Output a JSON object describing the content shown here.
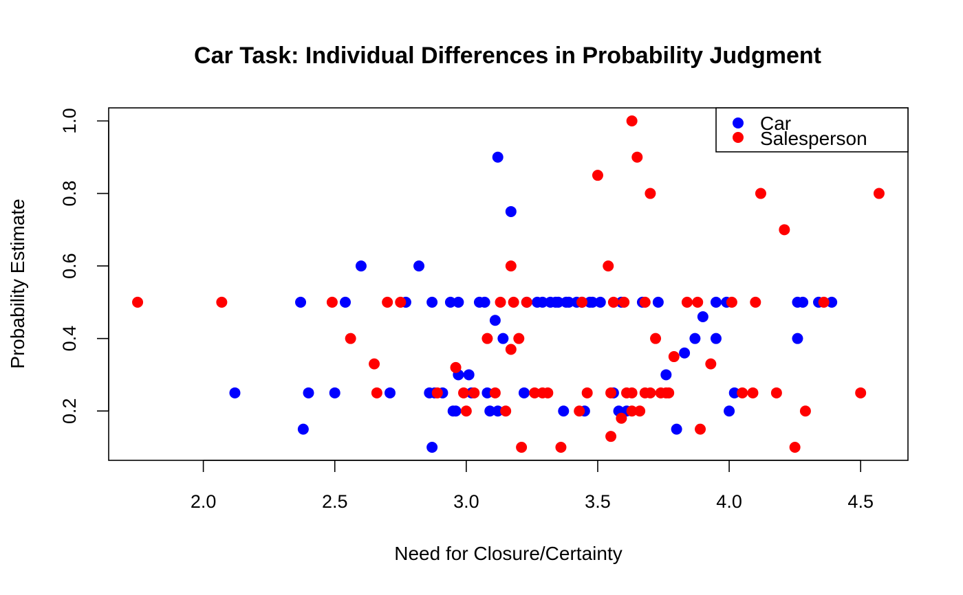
{
  "chart_data": {
    "type": "scatter",
    "title": "Car Task: Individual Differences in Probability Judgment",
    "xlabel": "Need for Closure/Certainty",
    "ylabel": "Probability Estimate",
    "xlim": [
      1.64,
      4.68
    ],
    "ylim": [
      0.064,
      1.036
    ],
    "x_ticks": [
      2.0,
      2.5,
      3.0,
      3.5,
      4.0,
      4.5
    ],
    "x_tick_labels": [
      "2.0",
      "2.5",
      "3.0",
      "3.5",
      "4.0",
      "4.5"
    ],
    "y_ticks": [
      0.2,
      0.4,
      0.6,
      0.8,
      1.0
    ],
    "y_tick_labels": [
      "0.2",
      "0.4",
      "0.6",
      "0.8",
      "1.0"
    ],
    "grid": false,
    "legend_position": "top-right",
    "series": [
      {
        "name": "Car",
        "color": "#0000ff",
        "points": [
          [
            2.12,
            0.25
          ],
          [
            2.37,
            0.5
          ],
          [
            2.38,
            0.15
          ],
          [
            2.4,
            0.25
          ],
          [
            2.5,
            0.25
          ],
          [
            2.54,
            0.5
          ],
          [
            2.6,
            0.6
          ],
          [
            2.71,
            0.25
          ],
          [
            2.77,
            0.5
          ],
          [
            2.82,
            0.6
          ],
          [
            2.86,
            0.25
          ],
          [
            2.87,
            0.5
          ],
          [
            2.87,
            0.1
          ],
          [
            2.88,
            0.25
          ],
          [
            2.91,
            0.25
          ],
          [
            2.94,
            0.5
          ],
          [
            2.95,
            0.2
          ],
          [
            2.96,
            0.2
          ],
          [
            2.97,
            0.3
          ],
          [
            2.97,
            0.5
          ],
          [
            3.01,
            0.3
          ],
          [
            3.02,
            0.25
          ],
          [
            3.05,
            0.5
          ],
          [
            3.07,
            0.5
          ],
          [
            3.08,
            0.25
          ],
          [
            3.09,
            0.2
          ],
          [
            3.11,
            0.45
          ],
          [
            3.12,
            0.9
          ],
          [
            3.12,
            0.2
          ],
          [
            3.14,
            0.4
          ],
          [
            3.17,
            0.75
          ],
          [
            3.22,
            0.25
          ],
          [
            3.23,
            0.5
          ],
          [
            3.27,
            0.5
          ],
          [
            3.29,
            0.5
          ],
          [
            3.32,
            0.5
          ],
          [
            3.34,
            0.5
          ],
          [
            3.35,
            0.5
          ],
          [
            3.37,
            0.2
          ],
          [
            3.38,
            0.5
          ],
          [
            3.39,
            0.5
          ],
          [
            3.42,
            0.5
          ],
          [
            3.44,
            0.5
          ],
          [
            3.45,
            0.2
          ],
          [
            3.47,
            0.5
          ],
          [
            3.48,
            0.5
          ],
          [
            3.51,
            0.5
          ],
          [
            3.56,
            0.25
          ],
          [
            3.58,
            0.2
          ],
          [
            3.59,
            0.5
          ],
          [
            3.61,
            0.2
          ],
          [
            3.67,
            0.5
          ],
          [
            3.73,
            0.5
          ],
          [
            3.76,
            0.3
          ],
          [
            3.8,
            0.15
          ],
          [
            3.83,
            0.36
          ],
          [
            3.87,
            0.4
          ],
          [
            3.9,
            0.46
          ],
          [
            3.95,
            0.4
          ],
          [
            3.95,
            0.5
          ],
          [
            3.99,
            0.5
          ],
          [
            4.0,
            0.2
          ],
          [
            4.02,
            0.25
          ],
          [
            4.26,
            0.4
          ],
          [
            4.26,
            0.5
          ],
          [
            4.28,
            0.5
          ],
          [
            4.34,
            0.5
          ],
          [
            4.39,
            0.5
          ]
        ]
      },
      {
        "name": "Salesperson",
        "color": "#ff0000",
        "points": [
          [
            1.75,
            0.5
          ],
          [
            2.07,
            0.5
          ],
          [
            2.49,
            0.5
          ],
          [
            2.56,
            0.4
          ],
          [
            2.65,
            0.33
          ],
          [
            2.66,
            0.25
          ],
          [
            2.7,
            0.5
          ],
          [
            2.75,
            0.5
          ],
          [
            2.89,
            0.25
          ],
          [
            2.96,
            0.32
          ],
          [
            2.99,
            0.25
          ],
          [
            3.0,
            0.2
          ],
          [
            3.03,
            0.25
          ],
          [
            3.08,
            0.4
          ],
          [
            3.11,
            0.25
          ],
          [
            3.13,
            0.5
          ],
          [
            3.15,
            0.2
          ],
          [
            3.17,
            0.6
          ],
          [
            3.17,
            0.37
          ],
          [
            3.18,
            0.5
          ],
          [
            3.2,
            0.4
          ],
          [
            3.21,
            0.1
          ],
          [
            3.23,
            0.5
          ],
          [
            3.26,
            0.25
          ],
          [
            3.29,
            0.25
          ],
          [
            3.31,
            0.25
          ],
          [
            3.36,
            0.1
          ],
          [
            3.43,
            0.2
          ],
          [
            3.44,
            0.5
          ],
          [
            3.46,
            0.25
          ],
          [
            3.5,
            0.85
          ],
          [
            3.54,
            0.6
          ],
          [
            3.55,
            0.25
          ],
          [
            3.55,
            0.13
          ],
          [
            3.56,
            0.5
          ],
          [
            3.59,
            0.18
          ],
          [
            3.6,
            0.5
          ],
          [
            3.61,
            0.25
          ],
          [
            3.63,
            1.0
          ],
          [
            3.63,
            0.2
          ],
          [
            3.63,
            0.25
          ],
          [
            3.65,
            0.9
          ],
          [
            3.66,
            0.2
          ],
          [
            3.68,
            0.25
          ],
          [
            3.68,
            0.5
          ],
          [
            3.7,
            0.8
          ],
          [
            3.7,
            0.25
          ],
          [
            3.72,
            0.4
          ],
          [
            3.74,
            0.25
          ],
          [
            3.76,
            0.25
          ],
          [
            3.77,
            0.25
          ],
          [
            3.79,
            0.35
          ],
          [
            3.84,
            0.5
          ],
          [
            3.88,
            0.5
          ],
          [
            3.89,
            0.15
          ],
          [
            3.93,
            0.33
          ],
          [
            4.01,
            0.5
          ],
          [
            4.05,
            0.25
          ],
          [
            4.09,
            0.25
          ],
          [
            4.1,
            0.5
          ],
          [
            4.12,
            0.8
          ],
          [
            4.18,
            0.25
          ],
          [
            4.21,
            0.7
          ],
          [
            4.25,
            0.1
          ],
          [
            4.29,
            0.2
          ],
          [
            4.36,
            0.5
          ],
          [
            4.5,
            0.25
          ],
          [
            4.57,
            0.8
          ]
        ]
      }
    ]
  }
}
